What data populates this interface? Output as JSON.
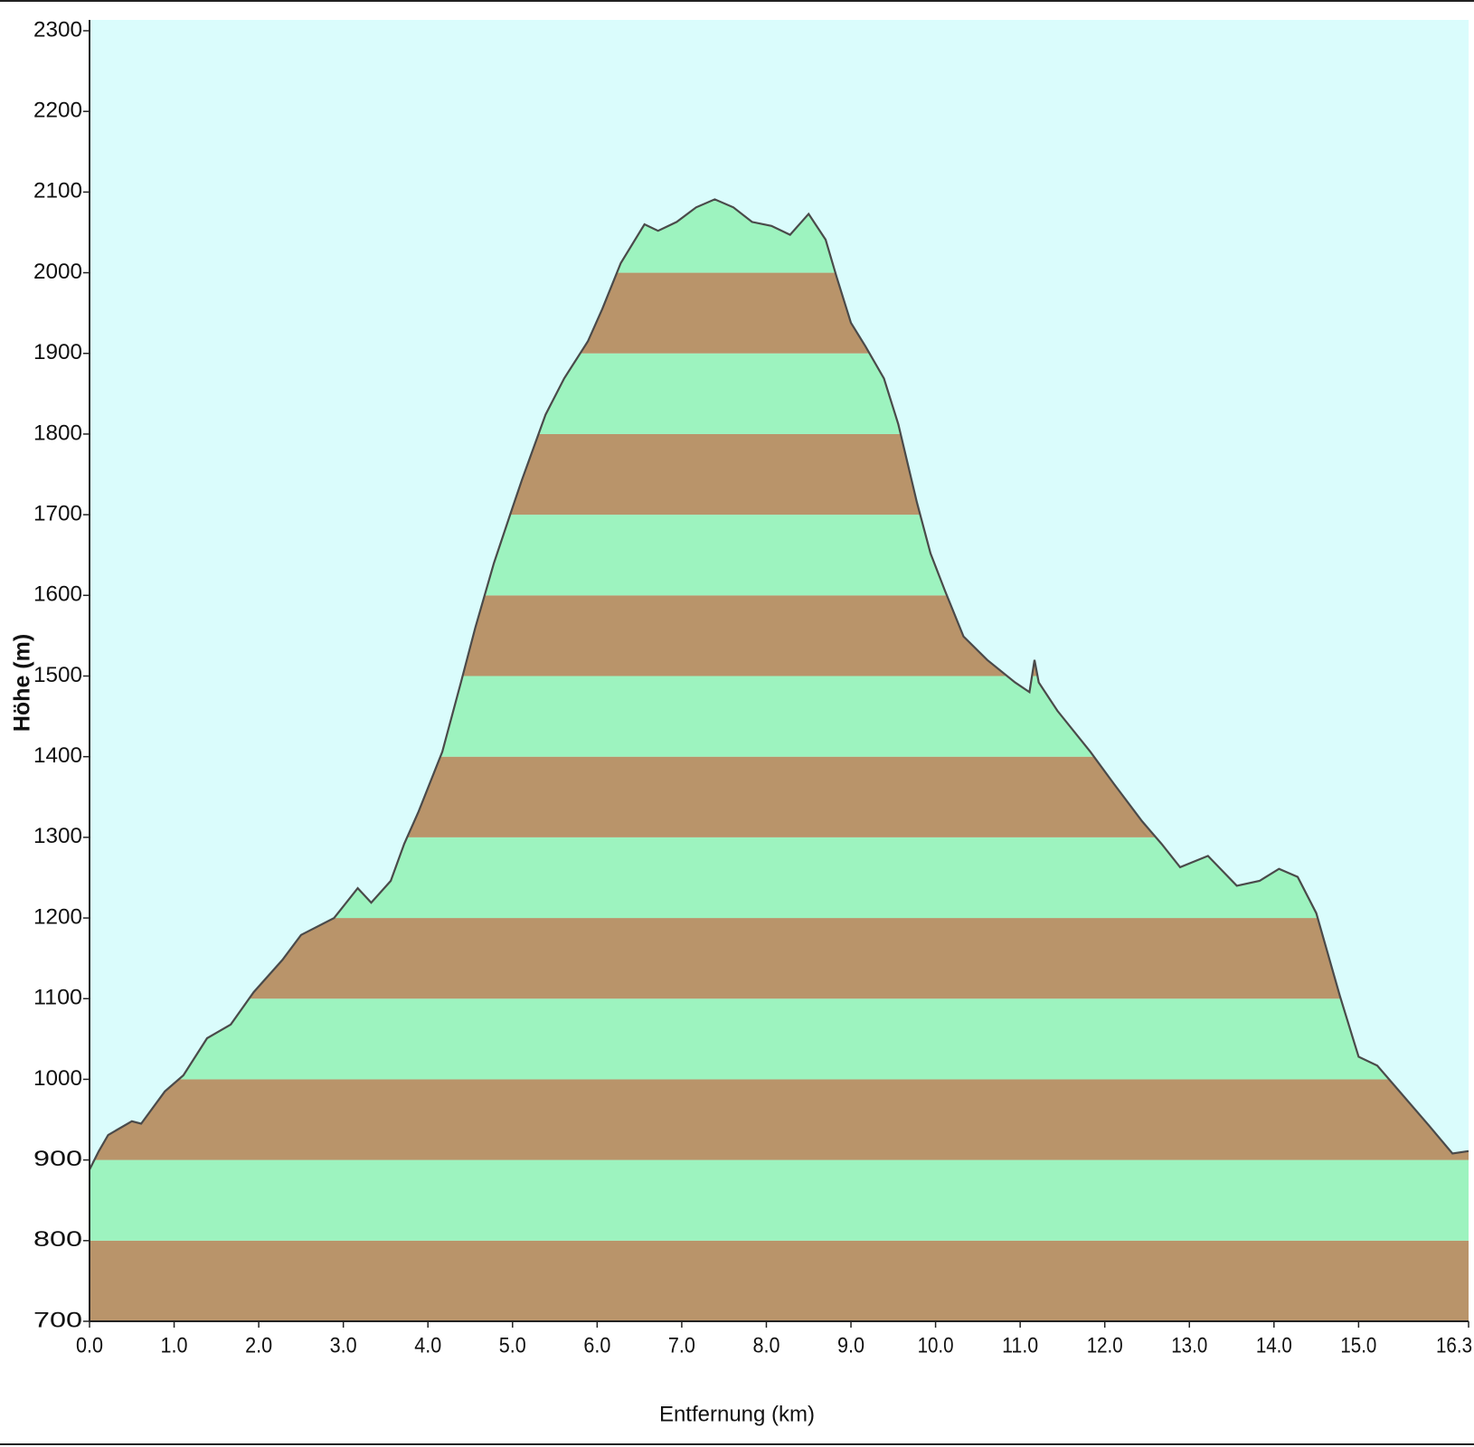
{
  "chart_data": {
    "type": "area",
    "y_label": "Höhe (m)",
    "x_label": "Entfernung  (km)",
    "x": [
      0.0,
      0.11,
      0.22,
      0.5,
      0.61,
      0.89,
      1.11,
      1.39,
      1.67,
      1.94,
      2.28,
      2.5,
      2.89,
      3.17,
      3.33,
      3.56,
      3.72,
      3.89,
      4.17,
      4.39,
      4.56,
      4.78,
      5.0,
      5.11,
      5.39,
      5.61,
      5.89,
      6.06,
      6.28,
      6.56,
      6.72,
      6.94,
      7.17,
      7.39,
      7.61,
      7.83,
      8.06,
      8.28,
      8.5,
      8.7,
      8.83,
      9.0,
      9.17,
      9.39,
      9.56,
      9.78,
      9.94,
      10.11,
      10.33,
      10.61,
      10.94,
      11.11,
      11.17,
      11.22,
      11.44,
      11.83,
      12.11,
      12.44,
      12.67,
      12.89,
      13.22,
      13.56,
      13.83,
      14.06,
      14.28,
      14.5,
      14.78,
      15.0,
      15.22,
      15.5,
      15.83,
      16.11,
      16.3
    ],
    "values": [
      888,
      911,
      931,
      948,
      945,
      985,
      1005,
      1051,
      1068,
      1108,
      1148,
      1179,
      1200,
      1237,
      1219,
      1246,
      1292,
      1332,
      1406,
      1492,
      1560,
      1640,
      1709,
      1743,
      1824,
      1869,
      1915,
      1955,
      2012,
      2060,
      2052,
      2063,
      2081,
      2091,
      2081,
      2063,
      2058,
      2047,
      2073,
      2041,
      1995,
      1938,
      1909,
      1869,
      1812,
      1715,
      1652,
      1606,
      1549,
      1520,
      1492,
      1480,
      1520,
      1492,
      1457,
      1406,
      1366,
      1320,
      1292,
      1263,
      1277,
      1240,
      1246,
      1261,
      1251,
      1206,
      1103,
      1028,
      1017,
      983,
      943,
      908,
      911
    ],
    "xlim": [
      0,
      16.3
    ],
    "ylim": [
      700,
      2300
    ],
    "xticks": [
      {
        "value": 0,
        "label": "0.0"
      },
      {
        "value": 1,
        "label": "1.0"
      },
      {
        "value": 2,
        "label": "2.0"
      },
      {
        "value": 3,
        "label": "3.0"
      },
      {
        "value": 4,
        "label": "4.0"
      },
      {
        "value": 5,
        "label": "5.0"
      },
      {
        "value": 6,
        "label": "6.0"
      },
      {
        "value": 7,
        "label": "7.0"
      },
      {
        "value": 8,
        "label": "8.0"
      },
      {
        "value": 9,
        "label": "9.0"
      },
      {
        "value": 10,
        "label": "10.0"
      },
      {
        "value": 11,
        "label": "11.0"
      },
      {
        "value": 12,
        "label": "12.0"
      },
      {
        "value": 13,
        "label": "13.0"
      },
      {
        "value": 14,
        "label": "14.0"
      },
      {
        "value": 15,
        "label": "15.0"
      },
      16.3
    ],
    "yticks": [
      700,
      800,
      900,
      1000,
      1100,
      1200,
      1300,
      1400,
      1500,
      1600,
      1700,
      1800,
      1900,
      2000,
      2100,
      2200,
      2300
    ],
    "band_colors": [
      "#b9946a",
      "#9df3bf"
    ],
    "background": "#dafcfc",
    "line_color": "#4a4a4a"
  }
}
